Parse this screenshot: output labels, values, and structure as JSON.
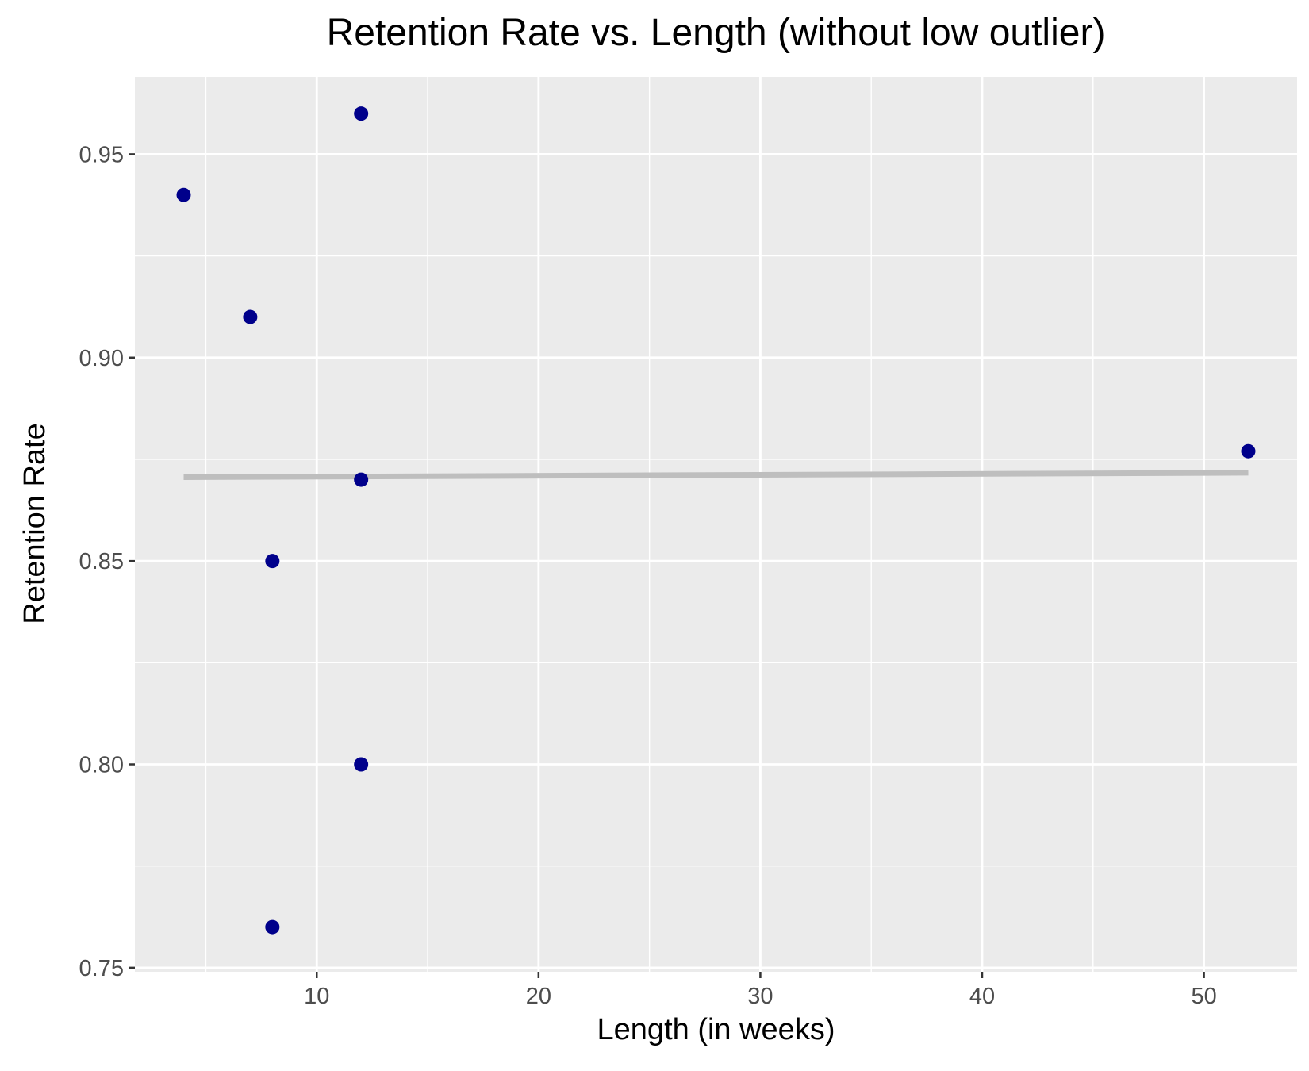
{
  "chart_data": {
    "type": "scatter",
    "title": "Retention Rate vs. Length (without low outlier)",
    "xlabel": "Length (in weeks)",
    "ylabel": "Retention Rate",
    "xlim": [
      1.8,
      54.2
    ],
    "ylim": [
      0.749,
      0.969
    ],
    "x_ticks": [
      10,
      20,
      30,
      40,
      50
    ],
    "x_tick_labels": [
      "10",
      "20",
      "30",
      "40",
      "50"
    ],
    "x_minor_ticks": [
      5,
      15,
      25,
      35,
      45
    ],
    "y_ticks": [
      0.75,
      0.8,
      0.85,
      0.9,
      0.95
    ],
    "y_tick_labels": [
      "0.75",
      "0.80",
      "0.85",
      "0.90",
      "0.95"
    ],
    "y_minor_ticks": [
      0.775,
      0.825,
      0.875,
      0.925
    ],
    "grid": true,
    "series": [
      {
        "points": [
          {
            "x": 4,
            "y": 0.94
          },
          {
            "x": 7,
            "y": 0.91
          },
          {
            "x": 8,
            "y": 0.85
          },
          {
            "x": 8,
            "y": 0.76
          },
          {
            "x": 12,
            "y": 0.96
          },
          {
            "x": 12,
            "y": 0.87
          },
          {
            "x": 12,
            "y": 0.8
          },
          {
            "x": 52,
            "y": 0.877
          }
        ],
        "color": "#00008b"
      }
    ],
    "trend_line": {
      "x": [
        4,
        52
      ],
      "y": [
        0.8706,
        0.8717
      ],
      "color": "#bebebe"
    },
    "panel_background": "#ebebeb",
    "grid_color": "#ffffff"
  }
}
